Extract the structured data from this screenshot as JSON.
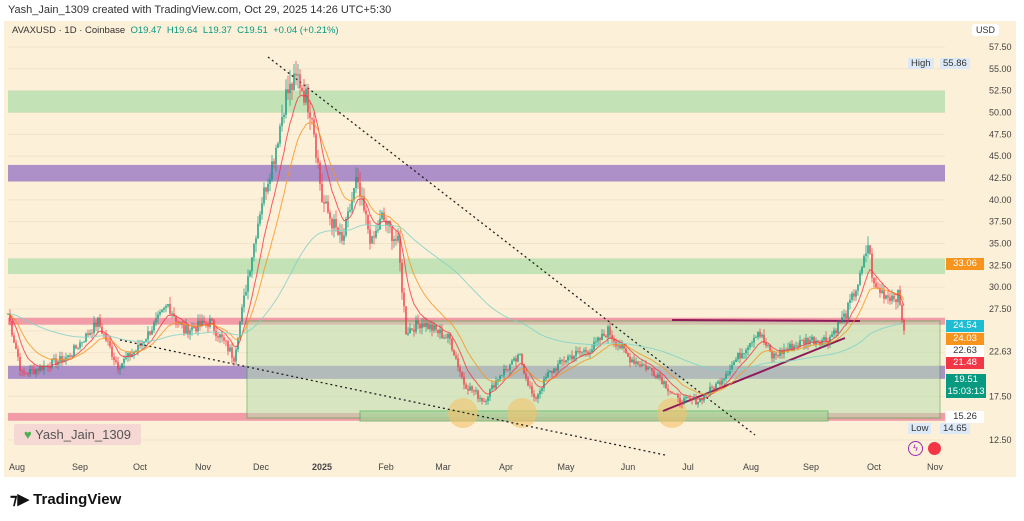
{
  "credit": "Yash_Jain_1309 created with TradingView.com, Oct 29, 2025 14:26 UTC+5:30",
  "legend": {
    "symbol": "AVAXUSD · 1D · Coinbase",
    "o": "O19.47",
    "h": "H19.64",
    "l": "L19.37",
    "c": "C19.51",
    "chg": "+0.04 (+0.21%)"
  },
  "currency": "USD",
  "high": {
    "label": "High",
    "value": "55.86"
  },
  "low": {
    "label": "Low",
    "value": "14.65"
  },
  "signature": "Yash_Jain_1309",
  "brand": "TradingView",
  "price_tags": [
    {
      "v": "33.06",
      "color": "#f7941d"
    },
    {
      "v": "24.54",
      "color": "#1fbcd2"
    },
    {
      "v": "24.03",
      "color": "#f7941d"
    },
    {
      "v": "22.63",
      "color": "#ffffff"
    },
    {
      "v": "21.48",
      "color": "#f23645"
    },
    {
      "v": "19.51",
      "color": "#089981"
    },
    {
      "v": "15.26",
      "color": "#ffffff"
    }
  ],
  "countdown": "15:03:13",
  "chart_data": {
    "type": "candlestick",
    "ylim": [
      12.5,
      57.5
    ],
    "yticks": [
      "57.50",
      "55.00",
      "52.50",
      "50.00",
      "47.50",
      "45.00",
      "42.50",
      "40.00",
      "37.50",
      "35.00",
      "32.50",
      "30.00",
      "27.50",
      "22.63",
      "17.50",
      "12.50"
    ],
    "xticks": [
      "Aug",
      "Sep",
      "Oct",
      "Nov",
      "Dec",
      "2025",
      "Feb",
      "Mar",
      "Apr",
      "May",
      "Jun",
      "Jul",
      "Aug",
      "Sep",
      "Oct",
      "Nov"
    ],
    "approx_close_path": [
      [
        "2024-08-01",
        27
      ],
      [
        "2024-08-08",
        20
      ],
      [
        "2024-08-31",
        22
      ],
      [
        "2024-09-15",
        26
      ],
      [
        "2024-09-25",
        21
      ],
      [
        "2024-10-05",
        23
      ],
      [
        "2024-10-20",
        28
      ],
      [
        "2024-10-28",
        25
      ],
      [
        "2024-11-10",
        26
      ],
      [
        "2024-11-22",
        22
      ],
      [
        "2024-11-28",
        30
      ],
      [
        "2024-12-06",
        40
      ],
      [
        "2024-12-12",
        45
      ],
      [
        "2024-12-18",
        52
      ],
      [
        "2024-12-24",
        54
      ],
      [
        "2024-12-31",
        50
      ],
      [
        "2025-01-05",
        40
      ],
      [
        "2025-01-15",
        35
      ],
      [
        "2025-01-22",
        42
      ],
      [
        "2025-01-30",
        35
      ],
      [
        "2025-02-04",
        38
      ],
      [
        "2025-02-12",
        35
      ],
      [
        "2025-02-16",
        25
      ],
      [
        "2025-02-24",
        26
      ],
      [
        "2025-03-10",
        24
      ],
      [
        "2025-03-17",
        19
      ],
      [
        "2025-03-27",
        17
      ],
      [
        "2025-04-04",
        20
      ],
      [
        "2025-04-14",
        22
      ],
      [
        "2025-04-21",
        17
      ],
      [
        "2025-04-28",
        20
      ],
      [
        "2025-05-08",
        22
      ],
      [
        "2025-05-20",
        23
      ],
      [
        "2025-05-28",
        25
      ],
      [
        "2025-06-07",
        22
      ],
      [
        "2025-06-15",
        21
      ],
      [
        "2025-06-22",
        20
      ],
      [
        "2025-07-02",
        17
      ],
      [
        "2025-07-12",
        17
      ],
      [
        "2025-07-22",
        19
      ],
      [
        "2025-08-01",
        22
      ],
      [
        "2025-08-11",
        25
      ],
      [
        "2025-08-18",
        22
      ],
      [
        "2025-08-26",
        23
      ],
      [
        "2025-09-05",
        24
      ],
      [
        "2025-09-15",
        24
      ],
      [
        "2025-09-24",
        27
      ],
      [
        "2025-10-01",
        31
      ],
      [
        "2025-10-05",
        35
      ],
      [
        "2025-10-08",
        30
      ],
      [
        "2025-10-15",
        29
      ],
      [
        "2025-10-20",
        29
      ],
      [
        "2025-10-25",
        23
      ],
      [
        "2025-10-27",
        21
      ],
      [
        "2025-11-03",
        19
      ],
      [
        "2025-11-10",
        19.5
      ]
    ],
    "zones": [
      {
        "from": 50,
        "to": 52.5,
        "color": "#b9dfb0"
      },
      {
        "from": 42.1,
        "to": 44,
        "color": "#9f7fc6"
      },
      {
        "from": 31.5,
        "to": 33.3,
        "color": "#b9dfb0"
      },
      {
        "from": 25.7,
        "to": 26.5,
        "color": "#f08da0"
      },
      {
        "from": 19.5,
        "to": 21,
        "color": "#9f7fc6"
      },
      {
        "from": 14.7,
        "to": 15.6,
        "color": "#f08da0"
      }
    ]
  }
}
